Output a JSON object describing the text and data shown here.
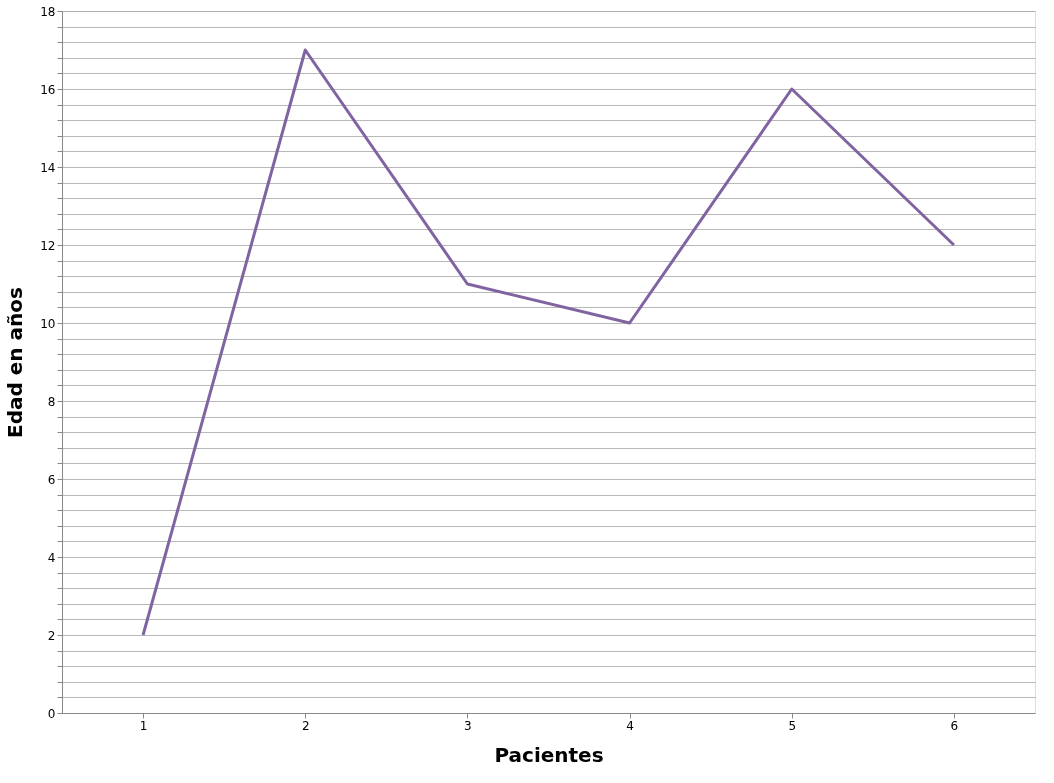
{
  "chart_data": {
    "type": "line",
    "xlabel": "Pacientes",
    "ylabel": "Edad  en  años",
    "categories": [
      "1",
      "2",
      "3",
      "4",
      "5",
      "6"
    ],
    "series": [
      {
        "color": "#8064a2",
        "values": [
          2,
          17,
          11,
          10,
          16,
          12
        ]
      }
    ],
    "ylim": [
      0,
      18
    ],
    "yticks": [
      0,
      {
        "value": 0.4,
        "label": null
      },
      {
        "value": 0.8,
        "label": null
      },
      {
        "value": 1.2,
        "label": null
      },
      {
        "value": 1.6,
        "label": null
      },
      2,
      {
        "value": 2.4,
        "label": null
      },
      {
        "value": 2.8,
        "label": null
      },
      {
        "value": 3.2,
        "label": null
      },
      {
        "value": 3.6,
        "label": null
      },
      4,
      {
        "value": 4.4,
        "label": null
      },
      {
        "value": 4.8,
        "label": null
      },
      {
        "value": 5.2,
        "label": null
      },
      {
        "value": 5.6,
        "label": null
      },
      6,
      {
        "value": 6.4,
        "label": null
      },
      {
        "value": 6.8,
        "label": null
      },
      {
        "value": 7.2,
        "label": null
      },
      {
        "value": 7.6,
        "label": null
      },
      8,
      {
        "value": 8.4,
        "label": null
      },
      {
        "value": 8.8,
        "label": null
      },
      {
        "value": 9.2,
        "label": null
      },
      {
        "value": 9.6,
        "label": null
      },
      10,
      {
        "value": 10.4,
        "label": null
      },
      {
        "value": 10.8,
        "label": null
      },
      {
        "value": 11.2,
        "label": null
      },
      {
        "value": 11.6,
        "label": null
      },
      12,
      {
        "value": 12.4,
        "label": null
      },
      {
        "value": 12.8,
        "label": null
      },
      {
        "value": 13.2,
        "label": null
      },
      {
        "value": 13.6,
        "label": null
      },
      14,
      {
        "value": 14.4,
        "label": null
      },
      {
        "value": 14.8,
        "label": null
      },
      {
        "value": 15.2,
        "label": null
      },
      {
        "value": 15.6,
        "label": null
      },
      16,
      {
        "value": 16.4,
        "label": null
      },
      {
        "value": 16.8,
        "label": null
      },
      {
        "value": 17.2,
        "label": null
      },
      {
        "value": 17.6,
        "label": null
      },
      18
    ],
    "grid": "y",
    "legend": false,
    "marker": "none",
    "line_style": "solid"
  }
}
